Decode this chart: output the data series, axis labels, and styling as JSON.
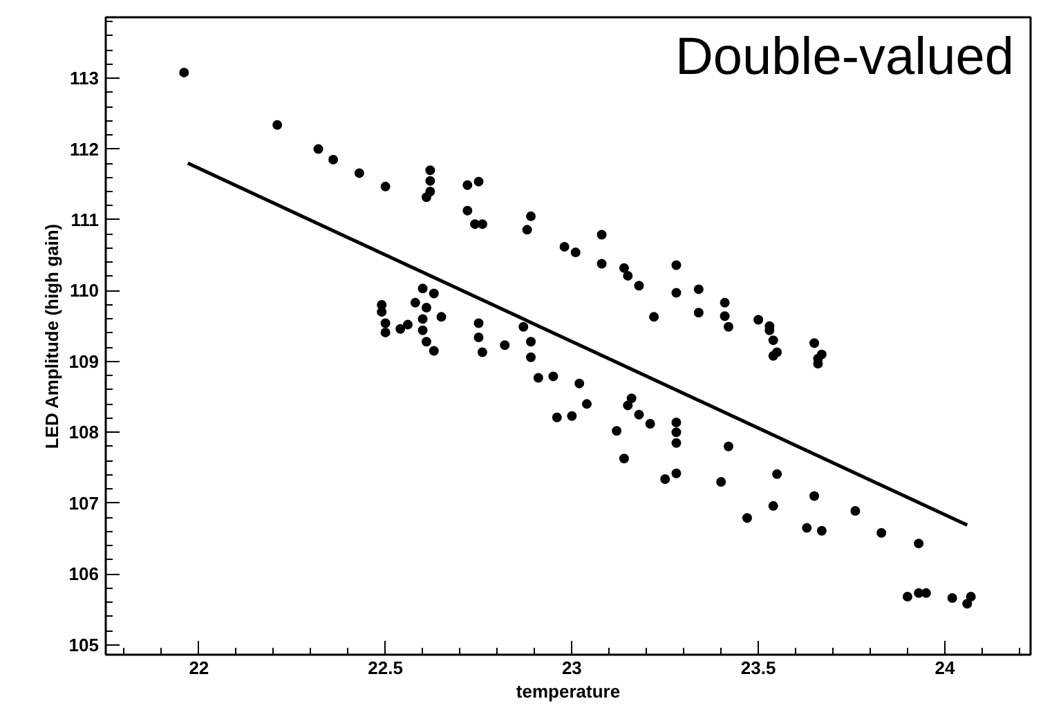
{
  "chart_data": {
    "type": "scatter",
    "xlabel": "temperature",
    "ylabel": "LED Amplitude (high gain)",
    "annotations": [
      "Double-valued"
    ],
    "xlim": [
      21.75,
      24.23
    ],
    "ylim": [
      104.86,
      113.86
    ],
    "xticks": [
      22,
      22.5,
      23,
      23.5,
      24
    ],
    "yticks": [
      105,
      106,
      107,
      108,
      109,
      110,
      111,
      112,
      113
    ],
    "grid": false,
    "series": [
      {
        "marker": "circle",
        "color": "#000000",
        "x": [
          21.96,
          22.21,
          22.32,
          22.36,
          22.43,
          22.5,
          22.62,
          22.62,
          22.62,
          22.61,
          22.72,
          22.75,
          22.72,
          22.74,
          22.76,
          22.89,
          22.88,
          22.98,
          23.01,
          23.08,
          23.08,
          23.14,
          23.15,
          23.18,
          23.28,
          23.28,
          23.22,
          23.34,
          23.34,
          23.41,
          23.41,
          23.42,
          23.5,
          23.53,
          23.53,
          23.54,
          23.55,
          23.54,
          23.65,
          23.66,
          23.67,
          23.66,
          22.95,
          23.02,
          23.04,
          22.96,
          23.0,
          23.16,
          23.15,
          23.18,
          23.21,
          23.12,
          23.28,
          23.28,
          23.28,
          23.42,
          23.14,
          23.28,
          23.25,
          23.4,
          23.55,
          23.47,
          23.54,
          23.65,
          23.63,
          23.67,
          23.76,
          23.83,
          23.93,
          23.9,
          23.93,
          23.95,
          24.02,
          24.07,
          24.06,
          22.49,
          22.49,
          22.5,
          22.5,
          22.54,
          22.56,
          22.6,
          22.58,
          22.63,
          22.61,
          22.6,
          22.6,
          22.61,
          22.63,
          22.65,
          22.75,
          22.75,
          22.76,
          22.82,
          22.87,
          22.89,
          22.89,
          22.91
        ],
        "values": [
          113.08,
          112.34,
          112.0,
          111.85,
          111.66,
          111.47,
          111.7,
          111.55,
          111.4,
          111.32,
          111.49,
          111.54,
          111.13,
          110.94,
          110.94,
          111.05,
          110.86,
          110.62,
          110.54,
          110.79,
          110.38,
          110.32,
          110.21,
          110.07,
          110.36,
          109.97,
          109.63,
          110.02,
          109.69,
          109.83,
          109.64,
          109.49,
          109.59,
          109.5,
          109.44,
          109.3,
          109.13,
          109.08,
          109.26,
          109.04,
          109.1,
          108.97,
          108.79,
          108.69,
          108.4,
          108.21,
          108.23,
          108.48,
          108.38,
          108.25,
          108.12,
          108.02,
          108.14,
          108.0,
          107.85,
          107.8,
          107.63,
          107.42,
          107.34,
          107.3,
          107.41,
          106.79,
          106.96,
          107.1,
          106.65,
          106.61,
          106.89,
          106.58,
          106.43,
          105.68,
          105.73,
          105.73,
          105.66,
          105.68,
          105.58,
          109.8,
          109.7,
          109.54,
          109.41,
          109.46,
          109.52,
          110.03,
          109.83,
          109.96,
          109.76,
          109.6,
          109.44,
          109.28,
          109.15,
          109.63,
          109.54,
          109.34,
          109.13,
          109.23,
          109.49,
          109.28,
          109.06,
          108.77
        ]
      },
      {
        "type": "line",
        "color": "#000000",
        "x": [
          21.97,
          24.06
        ],
        "values": [
          111.8,
          106.69
        ]
      }
    ]
  }
}
